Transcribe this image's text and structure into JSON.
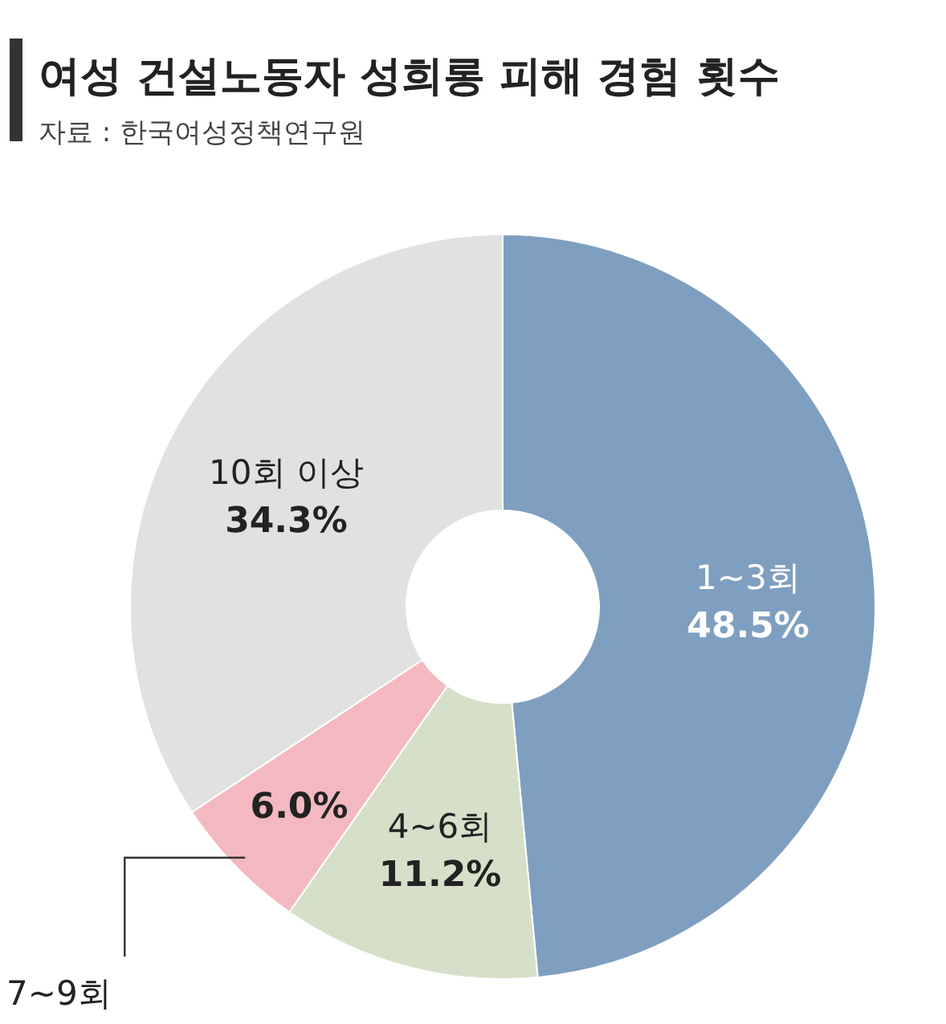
{
  "chart_data": {
    "type": "donut",
    "title": "여성 건설노동자 성희롱 피해 경험 횟수",
    "subtitle": "자료 : 한국여성정책연구원",
    "categories": [
      "1~3회",
      "4~6회",
      "7~9회",
      "10회 이상"
    ],
    "values": [
      48.5,
      11.2,
      6.0,
      34.3
    ],
    "value_labels": [
      "48.5%",
      "11.2%",
      "6.0%",
      "34.3%"
    ],
    "colors": [
      "#7f9fc0",
      "#d6e0c9",
      "#f4b9c0",
      "#e1e1e1"
    ]
  }
}
